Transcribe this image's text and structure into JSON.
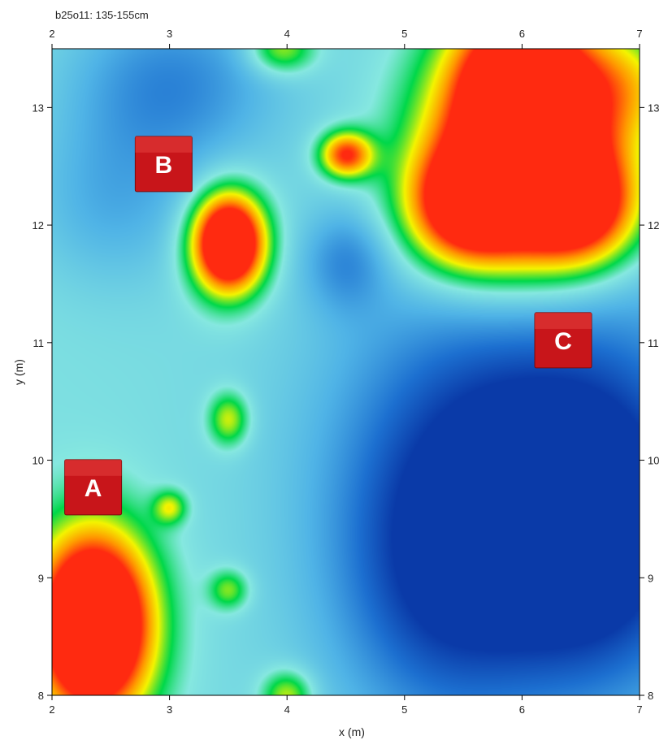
{
  "chart_data": {
    "type": "heatmap",
    "title": "b25o11: 135-155cm",
    "xlabel": "x (m)",
    "ylabel": "y (m)",
    "xlim": [
      2,
      7
    ],
    "ylim": [
      8,
      13.5
    ],
    "xticks": [
      2,
      3,
      4,
      5,
      6,
      7
    ],
    "yticks": [
      8,
      9,
      10,
      11,
      12,
      13
    ],
    "colormap": [
      "#0a3aa8",
      "#1c6fd0",
      "#4fb3e6",
      "#86e8e0",
      "#00d84a",
      "#f4f400",
      "#ff9900",
      "#ff2a10"
    ],
    "hotspots": [
      {
        "x": 6.0,
        "y": 12.5,
        "value": 0.85,
        "sx": 0.6,
        "sy": 0.7
      },
      {
        "x": 5.5,
        "y": 12.15,
        "value": 0.5,
        "sx": 0.35,
        "sy": 0.35
      },
      {
        "x": 6.5,
        "y": 12.15,
        "value": 0.5,
        "sx": 0.35,
        "sy": 0.35
      },
      {
        "x": 6.0,
        "y": 13.3,
        "value": 0.6,
        "sx": 0.4,
        "sy": 0.45
      },
      {
        "x": 3.5,
        "y": 11.85,
        "value": 0.95,
        "sx": 0.22,
        "sy": 0.3
      },
      {
        "x": 2.35,
        "y": 8.6,
        "value": 1.05,
        "sx": 0.35,
        "sy": 0.55
      },
      {
        "x": 4.5,
        "y": 12.6,
        "value": 0.55,
        "sx": 0.16,
        "sy": 0.14
      },
      {
        "x": 6.9,
        "y": 13.2,
        "value": 0.25,
        "sx": 0.35,
        "sy": 0.35
      },
      {
        "x": 3.5,
        "y": 10.35,
        "value": 0.3,
        "sx": 0.12,
        "sy": 0.16
      },
      {
        "x": 3.0,
        "y": 9.6,
        "value": 0.28,
        "sx": 0.1,
        "sy": 0.1
      },
      {
        "x": 3.5,
        "y": 8.9,
        "value": 0.25,
        "sx": 0.12,
        "sy": 0.12
      },
      {
        "x": 3.95,
        "y": 13.5,
        "value": 0.3,
        "sx": 0.2,
        "sy": 0.15
      },
      {
        "x": 4.0,
        "y": 8.0,
        "value": 0.3,
        "sx": 0.15,
        "sy": 0.15
      },
      {
        "x": 6.0,
        "y": 10.0,
        "value": -0.45,
        "sx": 1.0,
        "sy": 1.2
      },
      {
        "x": 6.6,
        "y": 9.3,
        "value": -0.4,
        "sx": 0.6,
        "sy": 0.8
      },
      {
        "x": 5.3,
        "y": 9.0,
        "value": -0.3,
        "sx": 0.6,
        "sy": 0.9
      },
      {
        "x": 3.0,
        "y": 13.2,
        "value": -0.25,
        "sx": 0.6,
        "sy": 0.5
      },
      {
        "x": 4.5,
        "y": 11.7,
        "value": -0.2,
        "sx": 0.25,
        "sy": 0.3
      },
      {
        "x": 2.5,
        "y": 12.2,
        "value": -0.15,
        "sx": 0.5,
        "sy": 0.5
      }
    ],
    "markers": [
      {
        "label": "A",
        "x": 2.35,
        "y": 9.77
      },
      {
        "label": "B",
        "x": 2.95,
        "y": 12.52
      },
      {
        "label": "C",
        "x": 6.35,
        "y": 11.02
      }
    ]
  }
}
